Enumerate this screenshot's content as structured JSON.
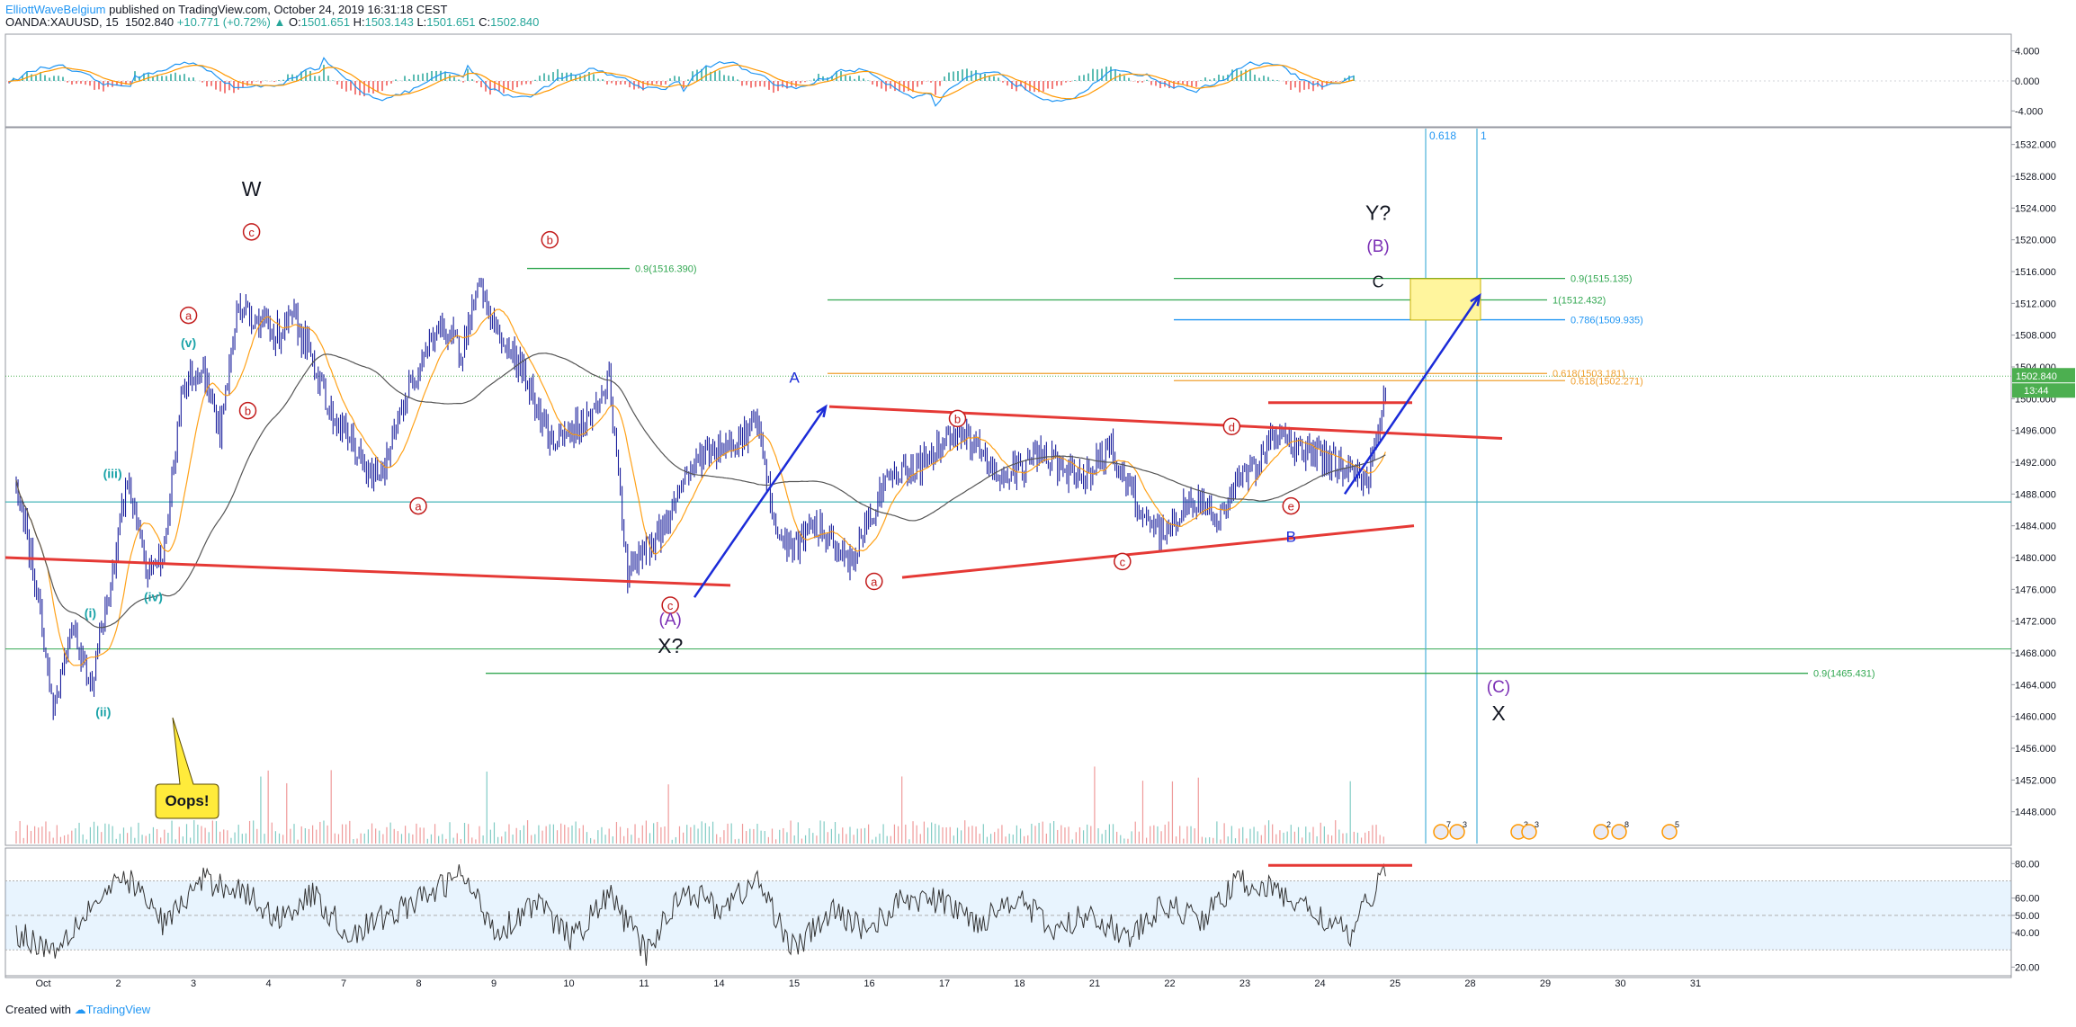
{
  "header": {
    "author": "ElliottWaveBelgium",
    "published": " published on TradingView.com, October 24, 2019 16:31:18 CEST",
    "symbol": "OANDA:XAUUSD, 15",
    "last": "1502.840",
    "change": "+10.771 (+0.72%)",
    "open_label": "O:",
    "open": "1501.651",
    "high_label": "H:",
    "high": "1503.143",
    "low_label": "L:",
    "low": "1501.651",
    "close_label": "C:",
    "close": "1502.840"
  },
  "footer": {
    "created_with": "Created with",
    "brand": "TradingView"
  },
  "colors": {
    "candle": "#1a1f9c",
    "wave_red": "#c21a1a",
    "teal": "#1aa3a8",
    "blue_arrow": "#1b2bd8",
    "green_line": "#33a852",
    "orange_fib": "#f0a030",
    "purple": "#7b2fb5",
    "fib_vline": "#4ab0d8",
    "target_box": "#fff59d",
    "callout": "#ffeb3b"
  },
  "chart_data": [
    {
      "type": "line",
      "panel": "oscillator",
      "y_ticks": [
        "4.000",
        "0.000",
        "-4.000"
      ],
      "ylim": [
        -6,
        6
      ],
      "series": []
    },
    {
      "type": "candlestick",
      "panel": "price",
      "ylim": [
        1444,
        1534
      ],
      "y_ticks": [
        "1532.000",
        "1528.000",
        "1524.000",
        "1520.000",
        "1516.000",
        "1512.000",
        "1508.000",
        "1504.000",
        "1500.000",
        "1496.000",
        "1492.000",
        "1488.000",
        "1484.000",
        "1480.000",
        "1476.000",
        "1472.000",
        "1468.000",
        "1464.000",
        "1460.000",
        "1456.000",
        "1452.000",
        "1448.000"
      ],
      "x_ticks": [
        "Oct",
        "2",
        "3",
        "4",
        "7",
        "8",
        "9",
        "10",
        "11",
        "14",
        "15",
        "16",
        "17",
        "18",
        "21",
        "22",
        "23",
        "24",
        "25",
        "28",
        "29",
        "30",
        "31"
      ],
      "last_price": "1502.840",
      "countdown": "13:44",
      "price_path": [
        [
          0,
          1489
        ],
        [
          1,
          1478
        ],
        [
          2,
          1461
        ],
        [
          3,
          1472
        ],
        [
          4,
          1464
        ],
        [
          5,
          1475
        ],
        [
          6,
          1490
        ],
        [
          7,
          1478
        ],
        [
          8,
          1481
        ],
        [
          9,
          1502
        ],
        [
          10,
          1504
        ],
        [
          11,
          1496
        ],
        [
          12,
          1512
        ],
        [
          13,
          1510
        ],
        [
          14,
          1508
        ],
        [
          15,
          1510
        ],
        [
          16,
          1505
        ],
        [
          17,
          1498
        ],
        [
          18,
          1495
        ],
        [
          19,
          1490
        ],
        [
          20,
          1492
        ],
        [
          21,
          1500
        ],
        [
          22,
          1506
        ],
        [
          23,
          1509
        ],
        [
          24,
          1506
        ],
        [
          25,
          1514
        ],
        [
          26,
          1508
        ],
        [
          27,
          1505
        ],
        [
          28,
          1500
        ],
        [
          29,
          1494
        ],
        [
          30,
          1496
        ],
        [
          31,
          1498
        ],
        [
          32,
          1502
        ],
        [
          33,
          1478
        ],
        [
          34,
          1481
        ],
        [
          35,
          1484
        ],
        [
          36,
          1490
        ],
        [
          37,
          1493
        ],
        [
          38,
          1494
        ],
        [
          39,
          1495
        ],
        [
          40,
          1497
        ],
        [
          41,
          1483
        ],
        [
          42,
          1481
        ],
        [
          43,
          1484
        ],
        [
          44,
          1482
        ],
        [
          45,
          1479
        ],
        [
          46,
          1485
        ],
        [
          47,
          1490
        ],
        [
          48,
          1491
        ],
        [
          49,
          1492
        ],
        [
          50,
          1495
        ],
        [
          51,
          1496
        ],
        [
          52,
          1493
        ],
        [
          53,
          1490
        ],
        [
          54,
          1491
        ],
        [
          55,
          1493
        ],
        [
          56,
          1492
        ],
        [
          57,
          1490
        ],
        [
          58,
          1491
        ],
        [
          59,
          1494
        ],
        [
          60,
          1489
        ],
        [
          61,
          1484
        ],
        [
          62,
          1483
        ],
        [
          63,
          1486
        ],
        [
          64,
          1487
        ],
        [
          65,
          1485
        ],
        [
          66,
          1490
        ],
        [
          67,
          1492
        ],
        [
          68,
          1496
        ],
        [
          69,
          1494
        ],
        [
          70,
          1493
        ],
        [
          71,
          1492
        ],
        [
          72,
          1491
        ],
        [
          73,
          1490
        ],
        [
          74,
          1502.84
        ]
      ],
      "oscillator_ylim": [
        15,
        88
      ],
      "oscillator_ticks": [
        "80.00",
        "60.00",
        "50.00",
        "40.00",
        "20.00"
      ],
      "oscillator_path": [
        [
          0,
          40
        ],
        [
          2,
          30
        ],
        [
          4,
          55
        ],
        [
          6,
          72
        ],
        [
          8,
          45
        ],
        [
          10,
          70
        ],
        [
          12,
          66
        ],
        [
          14,
          48
        ],
        [
          16,
          62
        ],
        [
          18,
          38
        ],
        [
          20,
          50
        ],
        [
          22,
          60
        ],
        [
          24,
          74
        ],
        [
          26,
          40
        ],
        [
          28,
          58
        ],
        [
          30,
          36
        ],
        [
          32,
          62
        ],
        [
          34,
          28
        ],
        [
          36,
          66
        ],
        [
          38,
          54
        ],
        [
          40,
          70
        ],
        [
          42,
          30
        ],
        [
          44,
          52
        ],
        [
          46,
          42
        ],
        [
          48,
          60
        ],
        [
          50,
          58
        ],
        [
          52,
          46
        ],
        [
          54,
          62
        ],
        [
          56,
          40
        ],
        [
          58,
          52
        ],
        [
          60,
          36
        ],
        [
          62,
          56
        ],
        [
          64,
          48
        ],
        [
          66,
          70
        ],
        [
          68,
          64
        ],
        [
          70,
          52
        ],
        [
          72,
          38
        ],
        [
          74,
          80
        ]
      ],
      "wave_labels": [
        {
          "text": "W",
          "style": "black_large",
          "x": 12.7,
          "y": 1525.5
        },
        {
          "text": "c",
          "style": "red_circle",
          "x": 12.7,
          "y": 1521
        },
        {
          "text": "a",
          "style": "red_circle",
          "x": 9.3,
          "y": 1510.5
        },
        {
          "text": "(v)",
          "style": "teal",
          "x": 9.3,
          "y": 1506.5
        },
        {
          "text": "b",
          "style": "red_circle",
          "x": 12.5,
          "y": 1498.5
        },
        {
          "text": "(iii)",
          "style": "teal",
          "x": 5.2,
          "y": 1490
        },
        {
          "text": "(iv)",
          "style": "teal",
          "x": 7.4,
          "y": 1474.5
        },
        {
          "text": "(i)",
          "style": "teal",
          "x": 4,
          "y": 1472.5
        },
        {
          "text": "(ii)",
          "style": "teal",
          "x": 4.7,
          "y": 1460
        },
        {
          "text": "a",
          "style": "red_circle",
          "x": 21.7,
          "y": 1486.5
        },
        {
          "text": "b",
          "style": "red_circle",
          "x": 28.8,
          "y": 1520
        },
        {
          "text": "c",
          "style": "red_circle",
          "x": 35.3,
          "y": 1474
        },
        {
          "text": "(A)",
          "style": "purple",
          "x": 35.3,
          "y": 1471.5
        },
        {
          "text": "X?",
          "style": "black_large",
          "x": 35.3,
          "y": 1468
        },
        {
          "text": "A",
          "style": "blue",
          "x": 42,
          "y": 1502
        },
        {
          "text": "a",
          "style": "red_circle",
          "x": 46.3,
          "y": 1477
        },
        {
          "text": "b",
          "style": "red_circle",
          "x": 50.8,
          "y": 1497.5
        },
        {
          "text": "c",
          "style": "red_circle",
          "x": 59.7,
          "y": 1479.5
        },
        {
          "text": "d",
          "style": "red_circle",
          "x": 65.6,
          "y": 1496.5
        },
        {
          "text": "e",
          "style": "red_circle",
          "x": 68.8,
          "y": 1486.5
        },
        {
          "text": "B",
          "style": "blue",
          "x": 68.8,
          "y": 1482
        },
        {
          "text": "Y?",
          "style": "black_large",
          "x": 73.5,
          "y": 1522.5
        },
        {
          "text": "(B)",
          "style": "purple",
          "x": 73.5,
          "y": 1518.5
        },
        {
          "text": "C",
          "style": "black_medium",
          "x": 73.5,
          "y": 1514
        },
        {
          "text": "(C)",
          "style": "purple",
          "x": 80,
          "y": 1463
        },
        {
          "text": "X",
          "style": "black_large",
          "x": 80,
          "y": 1459.5
        }
      ],
      "fib_levels": [
        {
          "label": "0.9(1516.390)",
          "color": "green"
        },
        {
          "label": "0.9(1515.135)",
          "color": "green"
        },
        {
          "label": "1(1512.432)",
          "color": "green"
        },
        {
          "label": "0.786(1509.935)",
          "color": "blue"
        },
        {
          "label": "0.618(1503.181)",
          "color": "orange"
        },
        {
          "label": "0.618(1502.271)",
          "color": "orange"
        },
        {
          "label": "0.9(1465.431)",
          "color": "green"
        }
      ],
      "fib_time": [
        "0.618",
        "1"
      ],
      "callout": "Oops!",
      "event_badges": [
        "7",
        "3",
        "3",
        "3",
        "2",
        "8",
        "5"
      ]
    }
  ]
}
